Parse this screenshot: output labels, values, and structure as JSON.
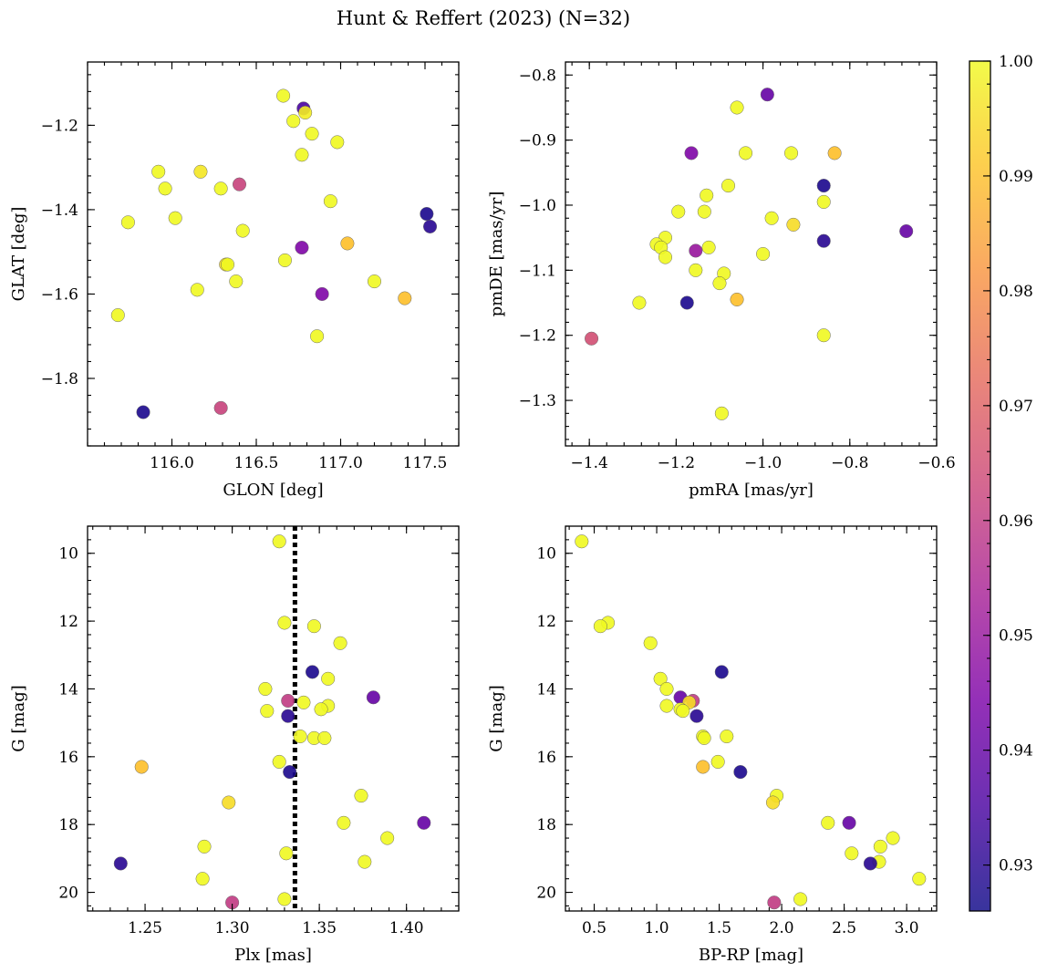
{
  "title": "Hunt & Reffert (2023) (N=32)",
  "colorbar": {
    "cmap": "plasma",
    "vmin": 0.926,
    "vmax": 1.0,
    "ticks": [
      0.93,
      0.94,
      0.95,
      0.96,
      0.97,
      0.98,
      0.99,
      1.0
    ],
    "tick_labels": [
      "0.93",
      "0.94",
      "0.95",
      "0.96",
      "0.97",
      "0.98",
      "0.99",
      "1.00"
    ]
  },
  "chart_data": [
    {
      "type": "scatter",
      "id": "glon-glat",
      "title": "",
      "xlabel": "GLON [deg]",
      "ylabel": "GLAT [deg]",
      "xlim": [
        115.5,
        117.7
      ],
      "ylim": [
        -1.96,
        -1.05
      ],
      "xticks": [
        116.0,
        116.5,
        117.0,
        117.5
      ],
      "xtick_labels": [
        "116.0",
        "116.5",
        "117.0",
        "117.5"
      ],
      "yticks": [
        -1.2,
        -1.4,
        -1.6,
        -1.8
      ],
      "ytick_labels": [
        "−1.2",
        "−1.4",
        "−1.6",
        "−1.8"
      ],
      "y_inverted": false,
      "points": [
        {
          "x": 116.66,
          "y": -1.13,
          "c": 1.0
        },
        {
          "x": 116.78,
          "y": -1.16,
          "c": 0.935
        },
        {
          "x": 116.79,
          "y": -1.17,
          "c": 0.998
        },
        {
          "x": 116.72,
          "y": -1.19,
          "c": 1.0
        },
        {
          "x": 116.83,
          "y": -1.22,
          "c": 1.0
        },
        {
          "x": 116.98,
          "y": -1.24,
          "c": 1.0
        },
        {
          "x": 116.77,
          "y": -1.27,
          "c": 1.0
        },
        {
          "x": 115.92,
          "y": -1.31,
          "c": 1.0
        },
        {
          "x": 116.17,
          "y": -1.31,
          "c": 0.997
        },
        {
          "x": 116.4,
          "y": -1.34,
          "c": 0.962
        },
        {
          "x": 115.96,
          "y": -1.35,
          "c": 1.0
        },
        {
          "x": 116.29,
          "y": -1.35,
          "c": 1.0
        },
        {
          "x": 116.94,
          "y": -1.38,
          "c": 1.0
        },
        {
          "x": 117.51,
          "y": -1.41,
          "c": 0.928
        },
        {
          "x": 116.02,
          "y": -1.42,
          "c": 1.0
        },
        {
          "x": 115.74,
          "y": -1.43,
          "c": 1.0
        },
        {
          "x": 117.53,
          "y": -1.44,
          "c": 0.93
        },
        {
          "x": 116.42,
          "y": -1.45,
          "c": 1.0
        },
        {
          "x": 117.04,
          "y": -1.48,
          "c": 0.99
        },
        {
          "x": 116.77,
          "y": -1.49,
          "c": 0.945
        },
        {
          "x": 116.67,
          "y": -1.52,
          "c": 1.0
        },
        {
          "x": 116.32,
          "y": -1.53,
          "c": 0.995
        },
        {
          "x": 116.33,
          "y": -1.53,
          "c": 1.0
        },
        {
          "x": 116.38,
          "y": -1.57,
          "c": 1.0
        },
        {
          "x": 117.2,
          "y": -1.57,
          "c": 1.0
        },
        {
          "x": 116.15,
          "y": -1.59,
          "c": 1.0
        },
        {
          "x": 116.89,
          "y": -1.6,
          "c": 0.945
        },
        {
          "x": 117.38,
          "y": -1.61,
          "c": 0.99
        },
        {
          "x": 115.68,
          "y": -1.65,
          "c": 1.0
        },
        {
          "x": 116.86,
          "y": -1.7,
          "c": 1.0
        },
        {
          "x": 116.29,
          "y": -1.87,
          "c": 0.962
        },
        {
          "x": 115.83,
          "y": -1.88,
          "c": 0.928
        }
      ]
    },
    {
      "type": "scatter",
      "id": "pmra-pmde",
      "title": "",
      "xlabel": "pmRA [mas/yr]",
      "ylabel": "pmDE [mas/yr]",
      "xlim": [
        -1.455,
        -0.6
      ],
      "ylim": [
        -1.37,
        -0.78
      ],
      "xticks": [
        -1.4,
        -1.2,
        -1.0,
        -0.8,
        -0.6
      ],
      "xtick_labels": [
        "−1.4",
        "−1.2",
        "−1.0",
        "−0.8",
        "−0.6"
      ],
      "yticks": [
        -0.8,
        -0.9,
        -1.0,
        -1.1,
        -1.2,
        -1.3
      ],
      "ytick_labels": [
        "−0.8",
        "−0.9",
        "−1.0",
        "−1.1",
        "−1.2",
        "−1.3"
      ],
      "y_inverted": false,
      "points": [
        {
          "x": -0.99,
          "y": -0.83,
          "c": 0.94
        },
        {
          "x": -1.06,
          "y": -0.85,
          "c": 1.0
        },
        {
          "x": -1.04,
          "y": -0.92,
          "c": 1.0
        },
        {
          "x": -1.165,
          "y": -0.92,
          "c": 0.945
        },
        {
          "x": -0.935,
          "y": -0.92,
          "c": 1.0
        },
        {
          "x": -0.835,
          "y": -0.92,
          "c": 0.99
        },
        {
          "x": -0.86,
          "y": -0.97,
          "c": 0.928
        },
        {
          "x": -1.08,
          "y": -0.97,
          "c": 1.0
        },
        {
          "x": -1.13,
          "y": -0.985,
          "c": 1.0
        },
        {
          "x": -0.86,
          "y": -0.995,
          "c": 1.0
        },
        {
          "x": -1.195,
          "y": -1.01,
          "c": 1.0
        },
        {
          "x": -1.135,
          "y": -1.01,
          "c": 1.0
        },
        {
          "x": -0.98,
          "y": -1.02,
          "c": 1.0
        },
        {
          "x": -0.93,
          "y": -1.03,
          "c": 0.995
        },
        {
          "x": -0.67,
          "y": -1.04,
          "c": 0.94
        },
        {
          "x": -1.225,
          "y": -1.05,
          "c": 1.0
        },
        {
          "x": -0.86,
          "y": -1.055,
          "c": 0.93
        },
        {
          "x": -1.245,
          "y": -1.06,
          "c": 1.0
        },
        {
          "x": -1.235,
          "y": -1.065,
          "c": 1.0
        },
        {
          "x": -1.125,
          "y": -1.065,
          "c": 1.0
        },
        {
          "x": -1.155,
          "y": -1.07,
          "c": 0.95
        },
        {
          "x": -1.0,
          "y": -1.075,
          "c": 1.0
        },
        {
          "x": -1.225,
          "y": -1.08,
          "c": 1.0
        },
        {
          "x": -1.155,
          "y": -1.1,
          "c": 1.0
        },
        {
          "x": -1.09,
          "y": -1.105,
          "c": 1.0
        },
        {
          "x": -1.1,
          "y": -1.12,
          "c": 1.0
        },
        {
          "x": -1.06,
          "y": -1.145,
          "c": 0.99
        },
        {
          "x": -1.285,
          "y": -1.15,
          "c": 1.0
        },
        {
          "x": -1.175,
          "y": -1.15,
          "c": 0.928
        },
        {
          "x": -0.86,
          "y": -1.2,
          "c": 1.0
        },
        {
          "x": -1.395,
          "y": -1.205,
          "c": 0.965
        },
        {
          "x": -1.095,
          "y": -1.32,
          "c": 1.0
        }
      ]
    },
    {
      "type": "scatter",
      "id": "plx-g",
      "title": "",
      "xlabel": "Plx [mas]",
      "ylabel": "G [mag]",
      "xlim": [
        1.217,
        1.43
      ],
      "ylim": [
        9.2,
        20.55
      ],
      "xticks": [
        1.25,
        1.3,
        1.35,
        1.4
      ],
      "xtick_labels": [
        "1.25",
        "1.30",
        "1.35",
        "1.40"
      ],
      "yticks": [
        10,
        12,
        14,
        16,
        18,
        20
      ],
      "ytick_labels": [
        "10",
        "12",
        "14",
        "16",
        "18",
        "20"
      ],
      "y_inverted": true,
      "vline": {
        "x": 1.336,
        "style": "dotted"
      },
      "points": [
        {
          "x": 1.327,
          "y": 9.65,
          "c": 1.0
        },
        {
          "x": 1.33,
          "y": 12.05,
          "c": 1.0
        },
        {
          "x": 1.347,
          "y": 12.15,
          "c": 1.0
        },
        {
          "x": 1.362,
          "y": 12.65,
          "c": 1.0
        },
        {
          "x": 1.346,
          "y": 13.5,
          "c": 0.928
        },
        {
          "x": 1.355,
          "y": 13.7,
          "c": 1.0
        },
        {
          "x": 1.319,
          "y": 14.0,
          "c": 1.0
        },
        {
          "x": 1.381,
          "y": 14.25,
          "c": 0.94
        },
        {
          "x": 1.332,
          "y": 14.35,
          "c": 0.96
        },
        {
          "x": 1.341,
          "y": 14.4,
          "c": 1.0
        },
        {
          "x": 1.355,
          "y": 14.5,
          "c": 1.0
        },
        {
          "x": 1.351,
          "y": 14.6,
          "c": 1.0
        },
        {
          "x": 1.32,
          "y": 14.65,
          "c": 1.0
        },
        {
          "x": 1.332,
          "y": 14.8,
          "c": 0.93
        },
        {
          "x": 1.339,
          "y": 15.4,
          "c": 1.0
        },
        {
          "x": 1.347,
          "y": 15.45,
          "c": 1.0
        },
        {
          "x": 1.353,
          "y": 15.45,
          "c": 1.0
        },
        {
          "x": 1.327,
          "y": 16.15,
          "c": 1.0
        },
        {
          "x": 1.248,
          "y": 16.3,
          "c": 0.99
        },
        {
          "x": 1.333,
          "y": 16.45,
          "c": 0.928
        },
        {
          "x": 1.374,
          "y": 17.15,
          "c": 1.0
        },
        {
          "x": 1.298,
          "y": 17.35,
          "c": 0.995
        },
        {
          "x": 1.41,
          "y": 17.95,
          "c": 0.94
        },
        {
          "x": 1.364,
          "y": 17.95,
          "c": 1.0
        },
        {
          "x": 1.389,
          "y": 18.4,
          "c": 1.0
        },
        {
          "x": 1.284,
          "y": 18.65,
          "c": 1.0
        },
        {
          "x": 1.331,
          "y": 18.85,
          "c": 1.0
        },
        {
          "x": 1.376,
          "y": 19.1,
          "c": 1.0
        },
        {
          "x": 1.236,
          "y": 19.15,
          "c": 0.93
        },
        {
          "x": 1.283,
          "y": 19.6,
          "c": 1.0
        },
        {
          "x": 1.33,
          "y": 20.2,
          "c": 1.0
        },
        {
          "x": 1.3,
          "y": 20.3,
          "c": 0.96
        }
      ]
    },
    {
      "type": "scatter",
      "id": "bprp-g",
      "title": "",
      "xlabel": "BP-RP [mag]",
      "ylabel": "G [mag]",
      "xlim": [
        0.27,
        3.24
      ],
      "ylim": [
        9.2,
        20.55
      ],
      "xticks": [
        0.5,
        1.0,
        1.5,
        2.0,
        2.5,
        3.0
      ],
      "xtick_labels": [
        "0.5",
        "1.0",
        "1.5",
        "2.0",
        "2.5",
        "3.0"
      ],
      "yticks": [
        10,
        12,
        14,
        16,
        18,
        20
      ],
      "ytick_labels": [
        "10",
        "12",
        "14",
        "16",
        "18",
        "20"
      ],
      "y_inverted": true,
      "points": [
        {
          "x": 0.4,
          "y": 9.65,
          "c": 1.0
        },
        {
          "x": 0.61,
          "y": 12.05,
          "c": 1.0
        },
        {
          "x": 0.55,
          "y": 12.15,
          "c": 1.0
        },
        {
          "x": 0.95,
          "y": 12.65,
          "c": 1.0
        },
        {
          "x": 1.52,
          "y": 13.5,
          "c": 0.928
        },
        {
          "x": 1.03,
          "y": 13.7,
          "c": 1.0
        },
        {
          "x": 1.08,
          "y": 14.0,
          "c": 1.0
        },
        {
          "x": 1.19,
          "y": 14.25,
          "c": 0.94
        },
        {
          "x": 1.29,
          "y": 14.35,
          "c": 0.96
        },
        {
          "x": 1.26,
          "y": 14.4,
          "c": 0.995
        },
        {
          "x": 1.08,
          "y": 14.5,
          "c": 1.0
        },
        {
          "x": 1.19,
          "y": 14.6,
          "c": 1.0
        },
        {
          "x": 1.21,
          "y": 14.65,
          "c": 1.0
        },
        {
          "x": 1.32,
          "y": 14.8,
          "c": 0.93
        },
        {
          "x": 1.37,
          "y": 15.4,
          "c": 1.0
        },
        {
          "x": 1.56,
          "y": 15.4,
          "c": 1.0
        },
        {
          "x": 1.38,
          "y": 15.45,
          "c": 1.0
        },
        {
          "x": 1.49,
          "y": 16.15,
          "c": 1.0
        },
        {
          "x": 1.37,
          "y": 16.3,
          "c": 0.99
        },
        {
          "x": 1.67,
          "y": 16.45,
          "c": 0.928
        },
        {
          "x": 1.96,
          "y": 17.15,
          "c": 1.0
        },
        {
          "x": 1.93,
          "y": 17.35,
          "c": 0.995
        },
        {
          "x": 2.37,
          "y": 17.95,
          "c": 1.0
        },
        {
          "x": 2.54,
          "y": 17.95,
          "c": 0.94
        },
        {
          "x": 2.89,
          "y": 18.4,
          "c": 1.0
        },
        {
          "x": 2.79,
          "y": 18.65,
          "c": 1.0
        },
        {
          "x": 2.56,
          "y": 18.85,
          "c": 1.0
        },
        {
          "x": 2.78,
          "y": 19.1,
          "c": 1.0
        },
        {
          "x": 2.71,
          "y": 19.15,
          "c": 0.93
        },
        {
          "x": 3.1,
          "y": 19.6,
          "c": 1.0
        },
        {
          "x": 2.15,
          "y": 20.2,
          "c": 1.0
        },
        {
          "x": 1.94,
          "y": 20.3,
          "c": 0.96
        }
      ]
    }
  ]
}
